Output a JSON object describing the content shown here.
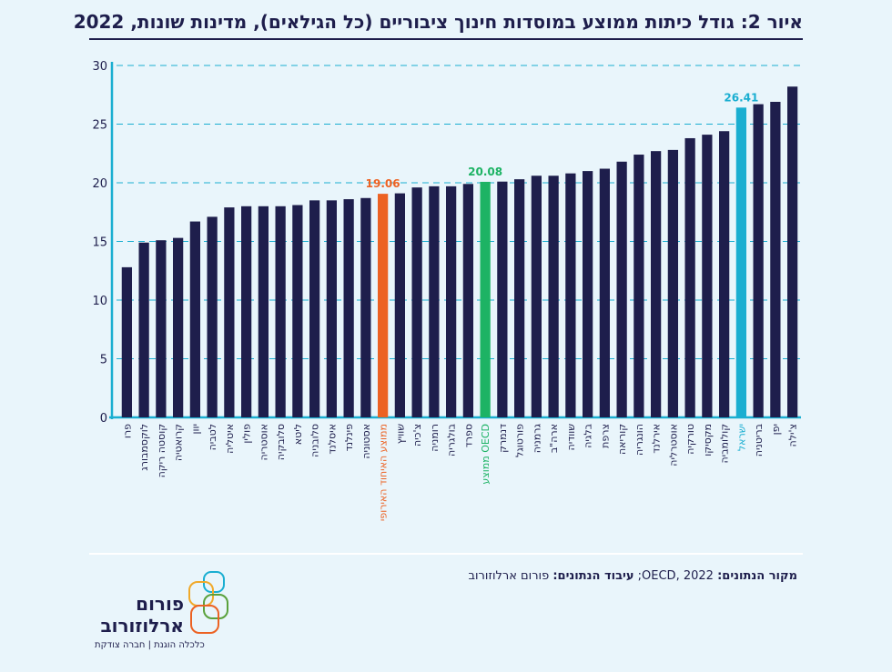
{
  "title": "איור 2: גודל כיתות ממוצע במוסדות חינוך ציבוריים (כל הגילאים), מדינות שונות, 2022",
  "source": {
    "label1": "מקור הנתונים:",
    "value1": " OECD, 2022; ",
    "label2": "עיבוד הנתונים:",
    "value2": " פורום ארלוזורוב"
  },
  "logo": {
    "name_line1": "פורום",
    "name_line2": "ארלוזורוב",
    "tagline": "כלכלה הוגנת | חברה צודקת"
  },
  "colors": {
    "default": "#1e1e4c",
    "eu": "#ec6223",
    "oecd": "#1db364",
    "israel": "#1aaed1"
  },
  "chart_data": {
    "type": "bar",
    "ylim": [
      0,
      30
    ],
    "yticks": [
      0,
      5,
      10,
      15,
      20,
      25,
      30
    ],
    "grid": "dashed horizontal",
    "categories": [
      "פרו",
      "לוקסמבורג",
      "קוסטה ריקה",
      "קרואטיה",
      "יוון",
      "לטביה",
      "איטליה",
      "פולין",
      "אוסטריה",
      "סלובקיה",
      "ליטא",
      "סלובניה",
      "איסלנד",
      "פינלנד",
      "אסטוניה",
      "ממוצע האיחוד האירופי",
      "שוויץ",
      "צ'כיה",
      "רומניה",
      "בולגריה",
      "ספרד",
      "ממוצע OECD",
      "דנמרק",
      "פורטוגל",
      "גרמניה",
      "ארה\"ב",
      "שוודיה",
      "בלגיה",
      "צרפת",
      "קוריאה",
      "הונגריה",
      "אירלנד",
      "אוסטרליה",
      "טורקיה",
      "מקסיקו",
      "קולומביה",
      "ישראל",
      "בריטניה",
      "יפן",
      "צ'ילה"
    ],
    "values": [
      12.8,
      14.9,
      15.1,
      15.3,
      16.7,
      17.1,
      17.9,
      18.0,
      18.0,
      18.0,
      18.1,
      18.5,
      18.5,
      18.6,
      18.7,
      19.06,
      19.1,
      19.6,
      19.7,
      19.7,
      19.9,
      20.08,
      20.1,
      20.3,
      20.6,
      20.6,
      20.8,
      21.0,
      21.2,
      21.8,
      22.4,
      22.7,
      22.8,
      23.8,
      24.1,
      24.4,
      26.41,
      26.7,
      26.9,
      28.2
    ],
    "highlights": [
      {
        "category": "ממוצע האיחוד האירופי",
        "label": "19.06",
        "color_key": "eu"
      },
      {
        "category": "ממוצע OECD",
        "label": "20.08",
        "color_key": "oecd"
      },
      {
        "category": "ישראל",
        "label": "26.41",
        "color_key": "israel"
      }
    ]
  }
}
